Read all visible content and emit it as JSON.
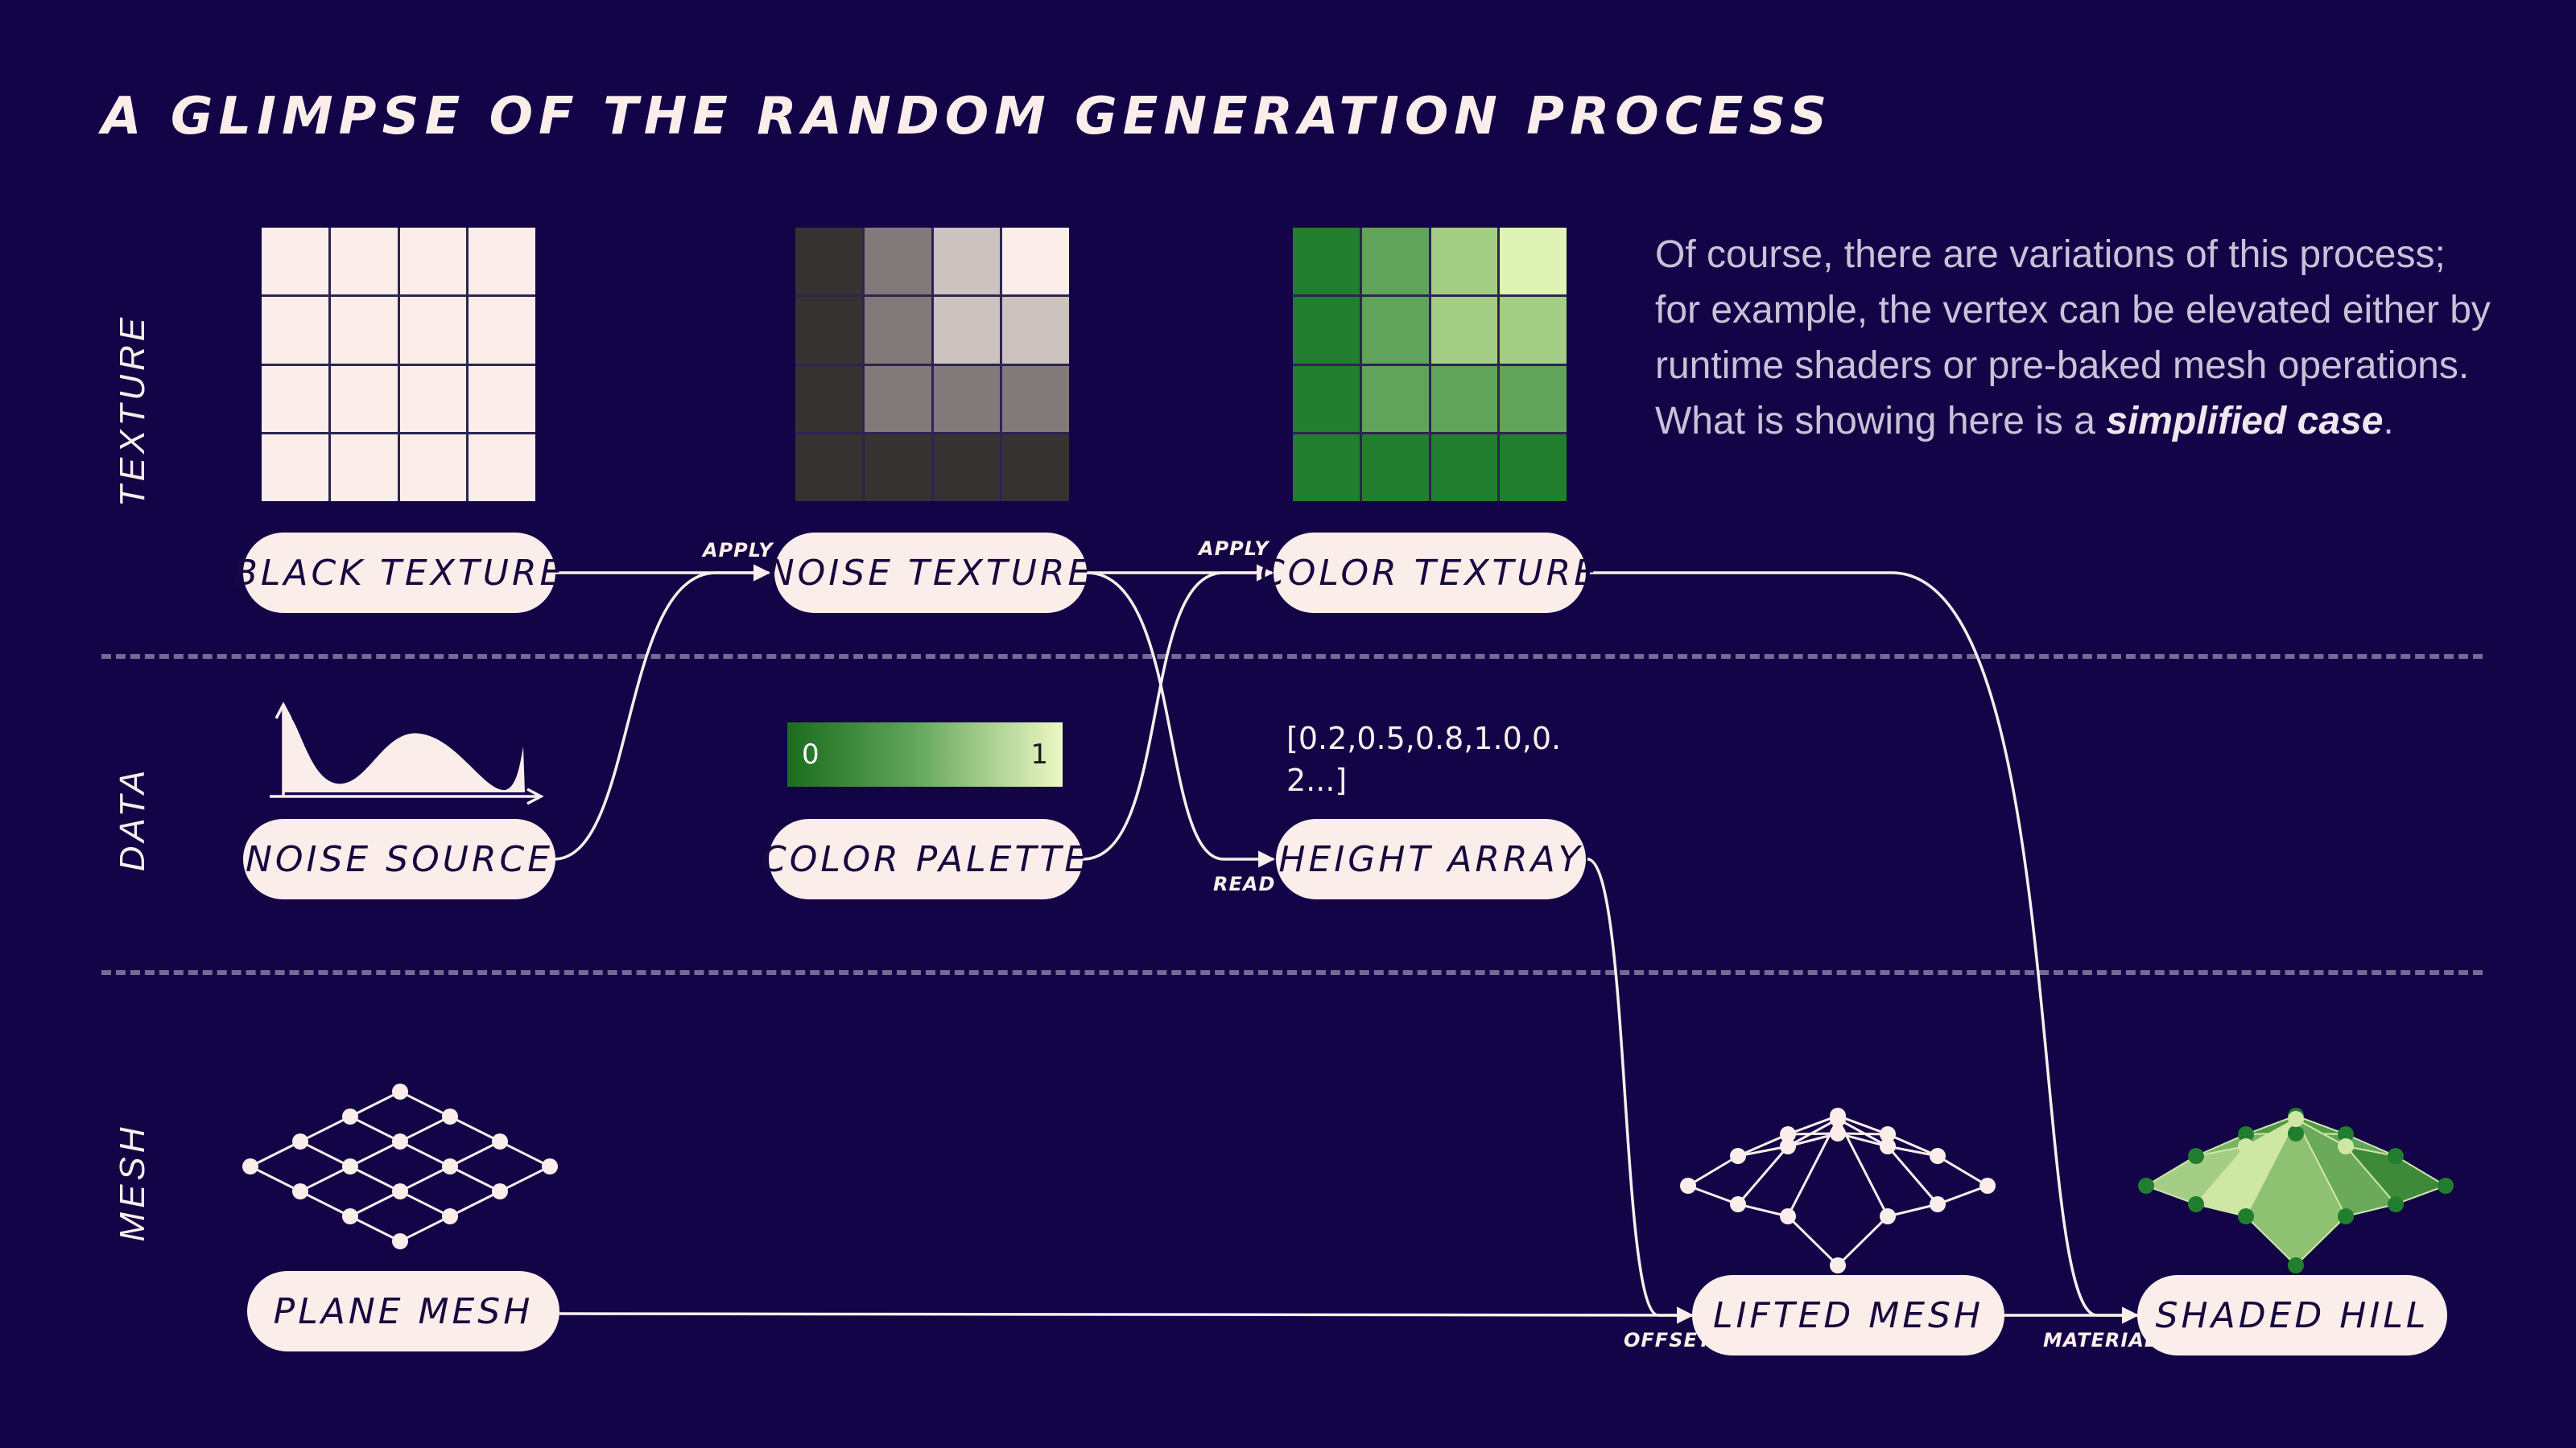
{
  "title": "A GLIMPSE OF THE RANDOM GENERATION PROCESS",
  "rows": {
    "texture": "TEXTURE",
    "data": "DATA",
    "mesh": "MESH"
  },
  "nodes": {
    "black_texture": "BLACK TEXTURE",
    "noise_texture": "NOISE TEXTURE",
    "color_texture": "COLOR TEXTURE",
    "noise_source": "NOISE SOURCE",
    "color_palette": "COLOR PALETTE",
    "height_array": "HEIGHT ARRAY",
    "plane_mesh": "PLANE MESH",
    "lifted_mesh": "LIFTED MESH",
    "shaded_hill": "SHADED HILL"
  },
  "edges": {
    "apply_1": "APPLY",
    "apply_2": "APPLY",
    "read": "READ",
    "offset": "OFFSET",
    "material": "MATERIAL"
  },
  "note": {
    "text": "Of course, there are variations of this process; for example, the vertex can be elevated either by runtime shaders or pre-baked mesh operations. What is showing here is a ",
    "emphasis": "simplified case",
    "end": "."
  },
  "palette": {
    "min_label": "0",
    "max_label": "1",
    "colors": [
      "#1b6c1e",
      "#5fa45a",
      "#eef8c5"
    ]
  },
  "height_array_value": "[0.2,0.5,0.8,1.0,0.2...]",
  "textures": {
    "black": [
      "#fbeeea",
      "#fbeeea",
      "#fbeeea",
      "#fbeeea",
      "#fbeeea",
      "#fbeeea",
      "#fbeeea",
      "#fbeeea",
      "#fbeeea",
      "#fbeeea",
      "#fbeeea",
      "#fbeeea",
      "#fbeeea",
      "#fbeeea",
      "#fbeeea",
      "#fbeeea"
    ],
    "noise": [
      "#363232",
      "#827a7a",
      "#ccc2bf",
      "#fbeeea",
      "#363232",
      "#827a7a",
      "#ccc2bf",
      "#ccc2bf",
      "#363232",
      "#827a7a",
      "#827a7a",
      "#827a7a",
      "#363232",
      "#363232",
      "#363232",
      "#363232"
    ],
    "color": [
      "#217e2e",
      "#5fa45a",
      "#a4cd86",
      "#dff3b5",
      "#217e2e",
      "#5fa45a",
      "#a4cd86",
      "#a4cd86",
      "#217e2e",
      "#5fa45a",
      "#5fa45a",
      "#5fa45a",
      "#217e2e",
      "#217e2e",
      "#217e2e",
      "#217e2e"
    ]
  },
  "colors": {
    "background": "#120447",
    "node_fill": "#fbeeea",
    "node_text": "#17083f",
    "note_text": "#cbc1d7"
  }
}
